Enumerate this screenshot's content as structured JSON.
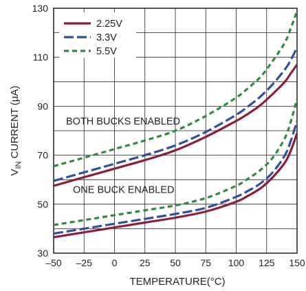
{
  "chart_data": {
    "type": "line",
    "xlabel": "TEMPERATURE(°C)",
    "ylabel_main": "V",
    "ylabel_sub": "IN",
    "ylabel_rest": " CURRENT (µA)",
    "xlim": [
      -50,
      150
    ],
    "ylim": [
      30,
      130
    ],
    "xticks": [
      "–50",
      "–25",
      "0",
      "25",
      "50",
      "75",
      "100",
      "125",
      "150"
    ],
    "xtick_values": [
      -50,
      -25,
      0,
      25,
      50,
      75,
      100,
      125,
      150
    ],
    "yticks": [
      "30",
      "50",
      "70",
      "90",
      "110",
      "130"
    ],
    "ytick_values": [
      30,
      50,
      70,
      90,
      110,
      130
    ],
    "grid": true,
    "legend_position": "top-left",
    "annotations": [
      "BOTH BUCKS ENABLED",
      "ONE BUCK ENABLED"
    ],
    "series": [
      {
        "name": "2.25V",
        "group": "both",
        "color": "#8c1d3f",
        "dash": "solid",
        "x": [
          -50,
          -25,
          0,
          25,
          50,
          75,
          100,
          110,
          120,
          130,
          140,
          145,
          150
        ],
        "y": [
          57.5,
          61,
          64.5,
          68,
          72,
          77.5,
          84,
          87,
          90.5,
          95,
          100,
          103.5,
          107
        ]
      },
      {
        "name": "3.3V",
        "group": "both",
        "color": "#2f4f9e",
        "dash": "dash",
        "x": [
          -50,
          -25,
          0,
          25,
          50,
          75,
          100,
          110,
          120,
          130,
          140,
          145,
          150
        ],
        "y": [
          59.5,
          63,
          66.5,
          70,
          74,
          79.5,
          86.5,
          90,
          94,
          99,
          105,
          109,
          114
        ]
      },
      {
        "name": "5.5V",
        "group": "both",
        "color": "#2e8b3e",
        "dash": "short-dash",
        "x": [
          -50,
          -25,
          0,
          25,
          50,
          75,
          100,
          110,
          120,
          130,
          140,
          145,
          150
        ],
        "y": [
          65.5,
          69,
          72.5,
          76,
          80,
          86,
          93.5,
          97.5,
          102,
          108.5,
          116,
          122,
          129
        ]
      },
      {
        "name": "2.25V",
        "group": "one",
        "color": "#8c1d3f",
        "dash": "solid",
        "x": [
          -50,
          -25,
          0,
          25,
          50,
          75,
          100,
          110,
          120,
          130,
          140,
          145,
          150
        ],
        "y": [
          36.5,
          38.5,
          40.5,
          42.5,
          44.5,
          47,
          51,
          53.5,
          56.5,
          61,
          67,
          72,
          79
        ]
      },
      {
        "name": "3.3V",
        "group": "one",
        "color": "#2f4f9e",
        "dash": "dash",
        "x": [
          -50,
          -25,
          0,
          25,
          50,
          75,
          100,
          110,
          120,
          130,
          140,
          145,
          150
        ],
        "y": [
          38,
          40,
          42,
          44,
          46,
          48.5,
          53,
          55.5,
          58.5,
          63,
          70,
          76,
          84
        ]
      },
      {
        "name": "5.5V",
        "group": "one",
        "color": "#2e8b3e",
        "dash": "short-dash",
        "x": [
          -50,
          -25,
          0,
          25,
          50,
          75,
          100,
          110,
          120,
          130,
          140,
          145,
          150
        ],
        "y": [
          41.5,
          43.5,
          45.5,
          47.5,
          49.5,
          52.5,
          57.5,
          60.5,
          64,
          69,
          77,
          84,
          93
        ]
      }
    ],
    "legend": [
      {
        "name": "2.25V",
        "color": "#8c1d3f",
        "dash": "solid"
      },
      {
        "name": "3.3V",
        "color": "#2f4f9e",
        "dash": "dash"
      },
      {
        "name": "5.5V",
        "color": "#2e8b3e",
        "dash": "short-dash"
      }
    ]
  }
}
